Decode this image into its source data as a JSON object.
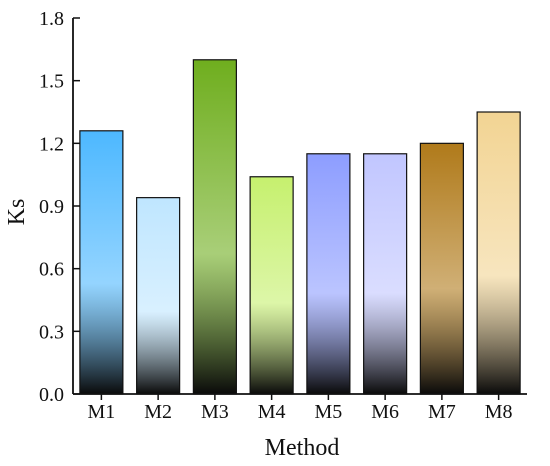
{
  "chart_data": {
    "type": "bar",
    "title": "",
    "xlabel": "Method",
    "ylabel": "Ks",
    "categories": [
      "M1",
      "M2",
      "M3",
      "M4",
      "M5",
      "M6",
      "M7",
      "M8"
    ],
    "values": [
      1.26,
      0.94,
      1.6,
      1.04,
      1.15,
      1.15,
      1.2,
      1.35
    ],
    "ylim": [
      0.0,
      1.8
    ],
    "yticks": [
      "0.0",
      "0.3",
      "0.6",
      "0.9",
      "1.2",
      "1.5",
      "1.8"
    ],
    "grid": false,
    "legend": "none",
    "bar_colors": [
      "#4db8ff",
      "#bfe6ff",
      "#6fae1e",
      "#c6f06e",
      "#8d9dff",
      "#c1c6ff",
      "#b07a1a",
      "#f2d493"
    ]
  }
}
